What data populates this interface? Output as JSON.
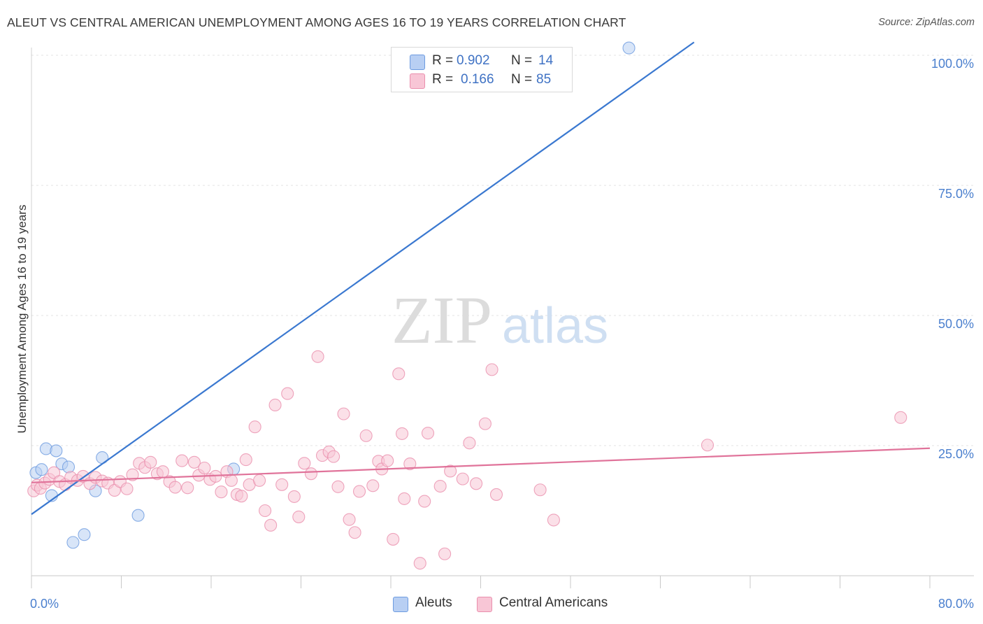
{
  "title": "ALEUT VS CENTRAL AMERICAN UNEMPLOYMENT AMONG AGES 16 TO 19 YEARS CORRELATION CHART",
  "source": "Source: ZipAtlas.com",
  "watermark": {
    "zip": "ZIP",
    "atlas": "atlas"
  },
  "legend": {
    "r_label": "R =",
    "n_label": "N =",
    "rows": [
      {
        "r": "0.902",
        "n": "14",
        "color": "#b8cff3",
        "stroke": "#6d9be0"
      },
      {
        "r": "0.166",
        "n": "85",
        "color": "#f8c6d6",
        "stroke": "#ea8fad"
      }
    ]
  },
  "bottom_legend": [
    {
      "label": "Aleuts",
      "color": "#b8cff3",
      "stroke": "#6d9be0"
    },
    {
      "label": "Central Americans",
      "color": "#f8c6d6",
      "stroke": "#ea8fad"
    }
  ],
  "chart_data": {
    "type": "scatter",
    "xlabel": "",
    "ylabel": "Unemployment Among Ages 16 to 19 years",
    "xlim": [
      0,
      80
    ],
    "ylim": [
      0,
      100
    ],
    "x_tick_labels": [
      "0.0%",
      "80.0%"
    ],
    "y_tick_labels": [
      {
        "value": 100,
        "label": "100.0%"
      },
      {
        "value": 75,
        "label": "75.0%"
      },
      {
        "value": 50,
        "label": "50.0%"
      },
      {
        "value": 25,
        "label": "25.0%"
      }
    ],
    "grid": true,
    "series": [
      {
        "name": "Aleuts",
        "color": "#6d9be0",
        "fill": "#b8cff3",
        "trend": {
          "x": [
            0,
            59
          ],
          "y": [
            11.8,
            102.5
          ],
          "color": "#3a78d0"
        },
        "points": [
          [
            0.4,
            19.8
          ],
          [
            0.9,
            20.4
          ],
          [
            1.3,
            24.4
          ],
          [
            1.8,
            15.4
          ],
          [
            2.2,
            24.0
          ],
          [
            2.7,
            21.5
          ],
          [
            3.3,
            20.9
          ],
          [
            3.7,
            6.4
          ],
          [
            4.7,
            7.9
          ],
          [
            5.7,
            16.3
          ],
          [
            6.3,
            22.7
          ],
          [
            9.5,
            11.6
          ],
          [
            18.0,
            20.5
          ],
          [
            53.2,
            101.4
          ]
        ]
      },
      {
        "name": "Central Americans",
        "color": "#ea8fad",
        "fill": "#f8c6d6",
        "trend": {
          "x": [
            0,
            80
          ],
          "y": [
            17.9,
            24.5
          ],
          "color": "#e0739a"
        },
        "points": [
          [
            0.2,
            16.3
          ],
          [
            0.5,
            17.4
          ],
          [
            0.8,
            16.8
          ],
          [
            1.2,
            17.8
          ],
          [
            1.6,
            18.5
          ],
          [
            2.0,
            19.8
          ],
          [
            2.5,
            18.1
          ],
          [
            3.0,
            17.5
          ],
          [
            3.5,
            18.9
          ],
          [
            4.1,
            18.3
          ],
          [
            4.6,
            19.1
          ],
          [
            5.2,
            17.7
          ],
          [
            5.7,
            18.9
          ],
          [
            6.3,
            18.2
          ],
          [
            6.8,
            17.8
          ],
          [
            7.4,
            16.4
          ],
          [
            7.9,
            18.1
          ],
          [
            8.5,
            16.7
          ],
          [
            9.0,
            19.4
          ],
          [
            9.6,
            21.6
          ],
          [
            10.1,
            20.8
          ],
          [
            10.6,
            21.8
          ],
          [
            11.2,
            19.6
          ],
          [
            11.7,
            20.0
          ],
          [
            12.3,
            18.1
          ],
          [
            12.8,
            17.0
          ],
          [
            13.4,
            22.1
          ],
          [
            13.9,
            16.9
          ],
          [
            14.5,
            21.8
          ],
          [
            14.9,
            19.3
          ],
          [
            15.4,
            20.7
          ],
          [
            15.9,
            18.5
          ],
          [
            16.4,
            19.1
          ],
          [
            16.9,
            16.1
          ],
          [
            17.4,
            20.0
          ],
          [
            17.8,
            18.3
          ],
          [
            18.3,
            15.6
          ],
          [
            18.7,
            15.3
          ],
          [
            19.1,
            22.3
          ],
          [
            19.4,
            17.5
          ],
          [
            19.9,
            28.6
          ],
          [
            20.3,
            18.3
          ],
          [
            20.8,
            12.5
          ],
          [
            21.3,
            9.7
          ],
          [
            21.7,
            32.8
          ],
          [
            22.3,
            17.5
          ],
          [
            22.8,
            35.0
          ],
          [
            23.4,
            15.2
          ],
          [
            23.8,
            11.3
          ],
          [
            24.3,
            21.6
          ],
          [
            24.9,
            19.6
          ],
          [
            25.5,
            42.1
          ],
          [
            25.9,
            23.1
          ],
          [
            26.5,
            23.8
          ],
          [
            26.9,
            22.9
          ],
          [
            27.3,
            17.1
          ],
          [
            27.8,
            31.1
          ],
          [
            28.3,
            10.8
          ],
          [
            28.8,
            8.3
          ],
          [
            29.2,
            16.2
          ],
          [
            29.8,
            26.9
          ],
          [
            30.4,
            17.3
          ],
          [
            30.9,
            22.0
          ],
          [
            31.2,
            20.5
          ],
          [
            31.7,
            22.1
          ],
          [
            32.2,
            7.0
          ],
          [
            32.7,
            38.8
          ],
          [
            33.0,
            27.3
          ],
          [
            33.2,
            14.8
          ],
          [
            33.7,
            21.5
          ],
          [
            34.6,
            2.4
          ],
          [
            35.0,
            14.3
          ],
          [
            35.3,
            27.4
          ],
          [
            36.4,
            17.2
          ],
          [
            36.8,
            4.2
          ],
          [
            37.3,
            20.1
          ],
          [
            38.4,
            18.6
          ],
          [
            39.0,
            25.5
          ],
          [
            39.6,
            17.7
          ],
          [
            40.4,
            29.2
          ],
          [
            41.0,
            39.6
          ],
          [
            41.4,
            15.6
          ],
          [
            45.3,
            16.5
          ],
          [
            46.5,
            10.7
          ],
          [
            60.2,
            25.1
          ],
          [
            77.4,
            30.4
          ]
        ]
      }
    ]
  }
}
